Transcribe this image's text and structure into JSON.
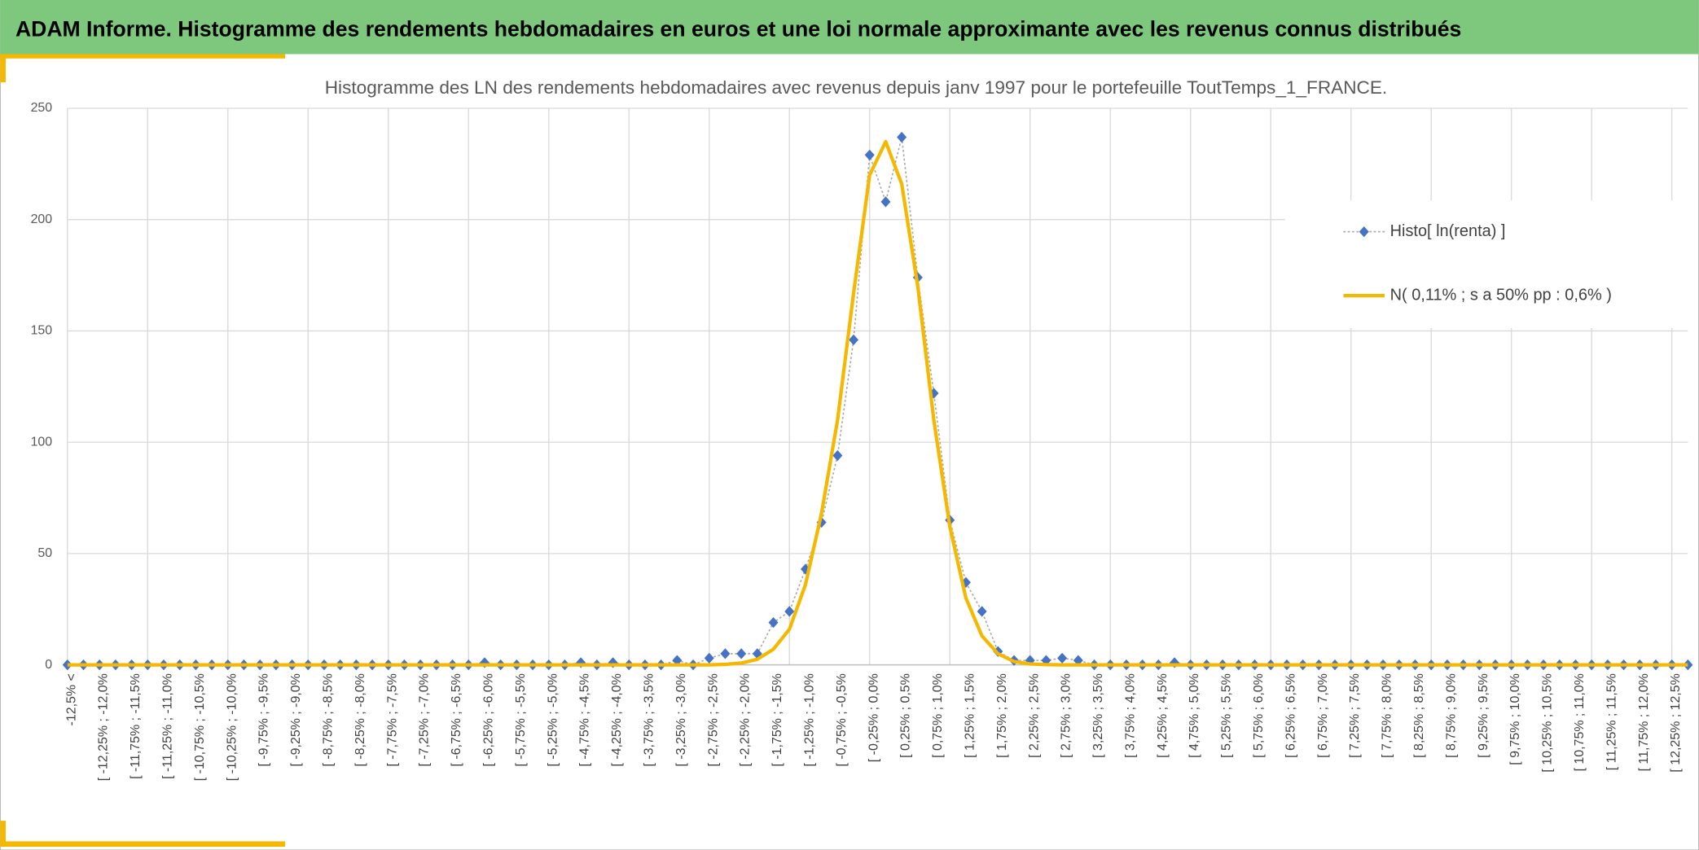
{
  "header": {
    "title": "ADAM Informe. Histogramme des rendements hebdomadaires en euros et une loi normale approximante avec les revenus connus distribués"
  },
  "chart_data": {
    "type": "line",
    "title": "Histogramme des LN des rendements hebdomadaires avec revenus depuis janv 1997 pour le portefeuille ToutTemps_1_FRANCE.",
    "categories": [
      "-12,5% <",
      null,
      "[ -12,25% ; -12,0%",
      null,
      "[ -11,75% ; -11,5%",
      null,
      "[ -11,25% ; -11,0%",
      null,
      "[ -10,75% ; -10,5%",
      null,
      "[ -10,25% ; -10,0%",
      null,
      "[ -9,75% ; -9,5%",
      null,
      "[ -9,25% ; -9,0%",
      null,
      "[ -8,75% ; -8,5%",
      null,
      "[ -8,25% ; -8,0%",
      null,
      "[ -7,75% ; -7,5%",
      null,
      "[ -7,25% ; -7,0%",
      null,
      "[ -6,75% ; -6,5%",
      null,
      "[ -6,25% ; -6,0%",
      null,
      "[ -5,75% ; -5,5%",
      null,
      "[ -5,25% ; -5,0%",
      null,
      "[ -4,75% ; -4,5%",
      null,
      "[ -4,25% ; -4,0%",
      null,
      "[ -3,75% ; -3,5%",
      null,
      "[ -3,25% ; -3,0%",
      null,
      "[ -2,75% ; -2,5%",
      null,
      "[ -2,25% ; -2,0%",
      null,
      "[ -1,75% ; -1,5%",
      null,
      "[ -1,25% ; -1,0%",
      null,
      "[ -0,75% ; -0,5%",
      null,
      "[ -0,25% ; 0,0%",
      null,
      "[ 0,25% ; 0,5%",
      null,
      "[ 0,75% ; 1,0%",
      null,
      "[ 1,25% ; 1,5%",
      null,
      "[ 1,75% ; 2,0%",
      null,
      "[ 2,25% ; 2,5%",
      null,
      "[ 2,75% ; 3,0%",
      null,
      "[ 3,25% ; 3,5%",
      null,
      "[ 3,75% ; 4,0%",
      null,
      "[ 4,25% ; 4,5%",
      null,
      "[ 4,75% ; 5,0%",
      null,
      "[ 5,25% ; 5,5%",
      null,
      "[ 5,75% ; 6,0%",
      null,
      "[ 6,25% ; 6,5%",
      null,
      "[ 6,75% ; 7,0%",
      null,
      "[ 7,25% ; 7,5%",
      null,
      "[ 7,75% ; 8,0%",
      null,
      "[ 8,25% ; 8,5%",
      null,
      "[ 8,75% ; 9,0%",
      null,
      "[ 9,25% ; 9,5%",
      null,
      "[ 9,75% ; 10,0%",
      null,
      "[ 10,25% ; 10,5%",
      null,
      "[ 10,75% ; 11,0%",
      null,
      "[ 11,25% ; 11,5%",
      null,
      "[ 11,75% ; 12,0%",
      null,
      "[ 12,25% ; 12,5%",
      null
    ],
    "series": [
      {
        "name": "Histo[ ln(renta) ]",
        "color": "#4472c4",
        "style": "markers",
        "values": [
          0,
          0,
          0,
          0,
          0,
          0,
          0,
          0,
          0,
          0,
          0,
          0,
          0,
          0,
          0,
          0,
          0,
          0,
          0,
          0,
          0,
          0,
          0,
          0,
          0,
          0,
          1,
          0,
          0,
          0,
          0,
          0,
          1,
          0,
          1,
          0,
          0,
          0,
          2,
          0,
          3,
          5,
          5,
          5,
          19,
          24,
          43,
          64,
          94,
          146,
          229,
          208,
          237,
          174,
          122,
          65,
          37,
          24,
          6,
          2,
          2,
          2,
          3,
          2,
          0,
          0,
          0,
          0,
          0,
          1,
          0,
          0,
          0,
          0,
          0,
          0,
          0,
          0,
          0,
          0,
          0,
          0,
          0,
          0,
          0,
          0,
          0,
          0,
          0,
          0,
          0,
          0,
          0,
          0,
          0,
          0,
          0,
          0,
          0,
          0,
          0,
          0
        ]
      },
      {
        "name": "N( 0,11% ; s a 50% pp : 0,6% )",
        "color": "#f5b800",
        "style": "line",
        "values": [
          0,
          0,
          0,
          0,
          0,
          0,
          0,
          0,
          0,
          0,
          0,
          0,
          0,
          0,
          0,
          0,
          0,
          0,
          0,
          0,
          0,
          0,
          0,
          0,
          0,
          0,
          0,
          0,
          0,
          0,
          0,
          0,
          0,
          0,
          0,
          0,
          0,
          0,
          0,
          0,
          0,
          0.2,
          0.8,
          2.5,
          7,
          16,
          36,
          68,
          110,
          167,
          220,
          235,
          216,
          170,
          110,
          62,
          30,
          13,
          5,
          1.5,
          0.4,
          0.1,
          0,
          0,
          0,
          0,
          0,
          0,
          0,
          0,
          0,
          0,
          0,
          0,
          0,
          0,
          0,
          0,
          0,
          0,
          0,
          0,
          0,
          0,
          0,
          0,
          0,
          0,
          0,
          0,
          0,
          0,
          0,
          0,
          0,
          0,
          0,
          0,
          0,
          0,
          0,
          0
        ]
      }
    ],
    "ylim": [
      0,
      250
    ],
    "yticks": [
      0,
      50,
      100,
      150,
      200,
      250
    ],
    "grid": true,
    "legend": "right"
  }
}
